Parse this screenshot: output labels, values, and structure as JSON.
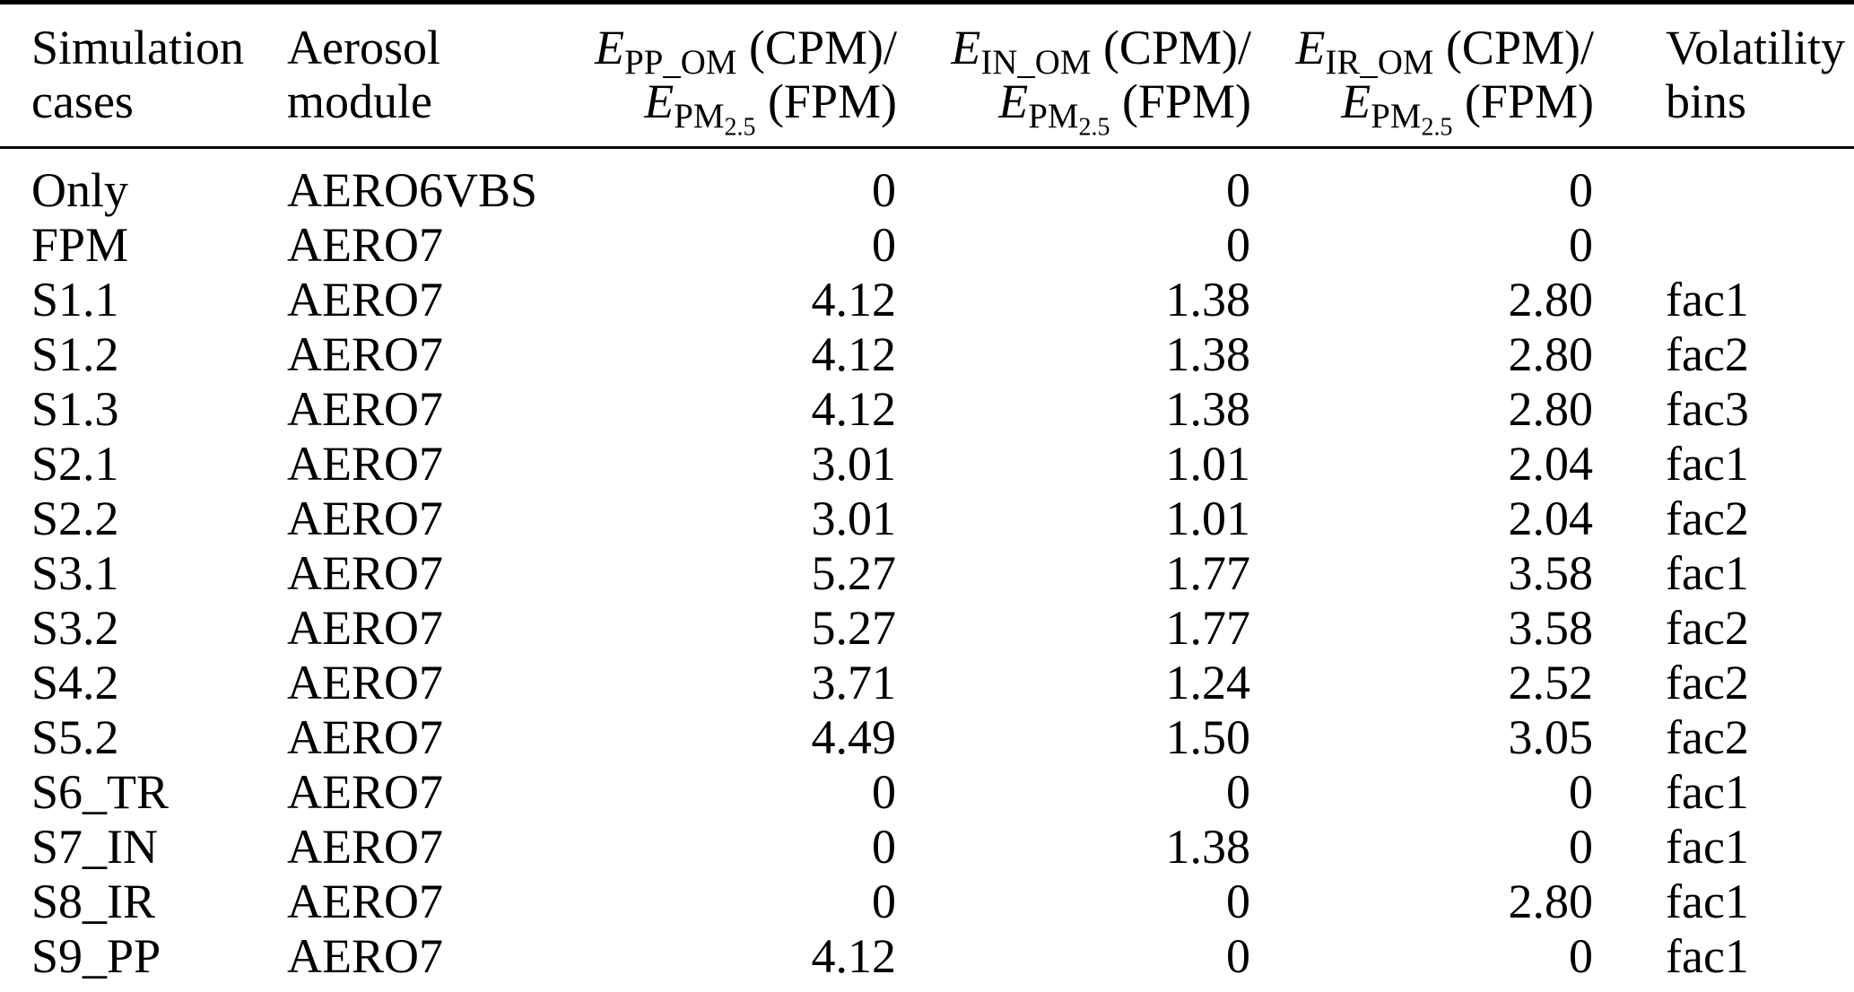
{
  "page": {
    "background_color": "#ffffff",
    "text_color": "#000000",
    "rule_color": "#000000"
  },
  "table": {
    "header": {
      "simulation_cases": {
        "line1": "Simulation",
        "line2": "cases"
      },
      "aerosol_module": {
        "line1": "Aerosol",
        "line2": "module"
      },
      "e_pp_om": {
        "num": {
          "var": "E",
          "sub": "PP_OM",
          "rest": " (CPM)/"
        },
        "den": {
          "var": "E",
          "sub": "PM",
          "subsub": "2.5",
          "rest": " (FPM)"
        }
      },
      "e_in_om": {
        "num": {
          "var": "E",
          "sub": "IN_OM",
          "rest": " (CPM)/"
        },
        "den": {
          "var": "E",
          "sub": "PM",
          "subsub": "2.5",
          "rest": " (FPM)"
        }
      },
      "e_ir_om": {
        "num": {
          "var": "E",
          "sub": "IR_OM",
          "rest": " (CPM)/"
        },
        "den": {
          "var": "E",
          "sub": "PM",
          "subsub": "2.5",
          "rest": " (FPM)"
        }
      },
      "volatility_bins": {
        "line1": "Volatility",
        "line2": "bins"
      }
    },
    "rows": [
      {
        "case": "Only",
        "module": "AERO6VBS",
        "e_pp_om": "0",
        "e_in_om": "0",
        "e_ir_om": "0",
        "bins": ""
      },
      {
        "case": "FPM",
        "module": "AERO7",
        "e_pp_om": "0",
        "e_in_om": "0",
        "e_ir_om": "0",
        "bins": ""
      },
      {
        "case": "S1.1",
        "module": "AERO7",
        "e_pp_om": "4.12",
        "e_in_om": "1.38",
        "e_ir_om": "2.80",
        "bins": "fac1"
      },
      {
        "case": "S1.2",
        "module": "AERO7",
        "e_pp_om": "4.12",
        "e_in_om": "1.38",
        "e_ir_om": "2.80",
        "bins": "fac2"
      },
      {
        "case": "S1.3",
        "module": "AERO7",
        "e_pp_om": "4.12",
        "e_in_om": "1.38",
        "e_ir_om": "2.80",
        "bins": "fac3"
      },
      {
        "case": "S2.1",
        "module": "AERO7",
        "e_pp_om": "3.01",
        "e_in_om": "1.01",
        "e_ir_om": "2.04",
        "bins": "fac1"
      },
      {
        "case": "S2.2",
        "module": "AERO7",
        "e_pp_om": "3.01",
        "e_in_om": "1.01",
        "e_ir_om": "2.04",
        "bins": "fac2"
      },
      {
        "case": "S3.1",
        "module": "AERO7",
        "e_pp_om": "5.27",
        "e_in_om": "1.77",
        "e_ir_om": "3.58",
        "bins": "fac1"
      },
      {
        "case": "S3.2",
        "module": "AERO7",
        "e_pp_om": "5.27",
        "e_in_om": "1.77",
        "e_ir_om": "3.58",
        "bins": "fac2"
      },
      {
        "case": "S4.2",
        "module": "AERO7",
        "e_pp_om": "3.71",
        "e_in_om": "1.24",
        "e_ir_om": "2.52",
        "bins": "fac2"
      },
      {
        "case": "S5.2",
        "module": "AERO7",
        "e_pp_om": "4.49",
        "e_in_om": "1.50",
        "e_ir_om": "3.05",
        "bins": "fac2"
      },
      {
        "case": "S6_TR",
        "module": "AERO7",
        "e_pp_om": "0",
        "e_in_om": "0",
        "e_ir_om": "0",
        "bins": "fac1"
      },
      {
        "case": "S7_IN",
        "module": "AERO7",
        "e_pp_om": "0",
        "e_in_om": "1.38",
        "e_ir_om": "0",
        "bins": "fac1"
      },
      {
        "case": "S8_IR",
        "module": "AERO7",
        "e_pp_om": "0",
        "e_in_om": "0",
        "e_ir_om": "2.80",
        "bins": "fac1"
      },
      {
        "case": "S9_PP",
        "module": "AERO7",
        "e_pp_om": "4.12",
        "e_in_om": "0",
        "e_ir_om": "0",
        "bins": "fac1"
      }
    ]
  }
}
